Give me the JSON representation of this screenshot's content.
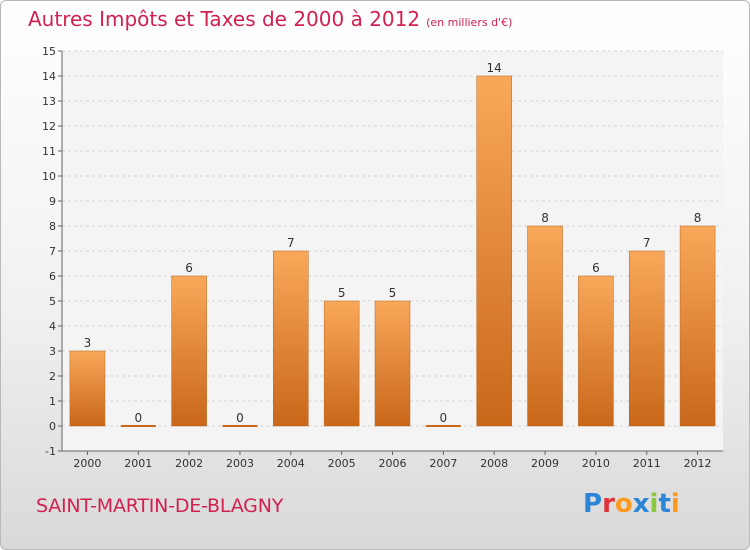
{
  "title": "Autres Impôts et Taxes de 2000 à 2012",
  "subtitle": "(en milliers d'€)",
  "commune": "SAINT-MARTIN-DE-BLAGNY",
  "brand": {
    "letters": [
      "P",
      "r",
      "o",
      "x",
      "i",
      "t",
      "i"
    ],
    "colors": [
      "#2b86d8",
      "#e2323b",
      "#ff9a1e",
      "#2b86d8",
      "#8cc63f",
      "#2b86d8",
      "#ff9a1e"
    ]
  },
  "colors": {
    "bar_light": "#f9a85a",
    "bar_dark": "#c9671a",
    "accent": "#d2214f"
  },
  "chart_data": {
    "type": "bar",
    "categories": [
      "2000",
      "2001",
      "2002",
      "2003",
      "2004",
      "2005",
      "2006",
      "2007",
      "2008",
      "2009",
      "2010",
      "2011",
      "2012"
    ],
    "values": [
      3,
      0,
      6,
      0,
      7,
      5,
      5,
      0,
      14,
      8,
      6,
      7,
      8
    ],
    "data_labels": [
      "3",
      "0",
      "6",
      "0",
      "7",
      "5",
      "5",
      "0",
      "14",
      "8",
      "6",
      "7",
      "8"
    ],
    "ylim": [
      -1,
      15
    ],
    "yticks": [
      -1,
      0,
      1,
      2,
      3,
      4,
      5,
      6,
      7,
      8,
      9,
      10,
      11,
      12,
      13,
      14,
      15
    ],
    "ytick_labels": [
      "-1",
      "0",
      "1",
      "2",
      "3",
      "4",
      "5",
      "6",
      "7",
      "8",
      "9",
      "10",
      "11",
      "12",
      "13",
      "14",
      "15"
    ],
    "grid": true
  }
}
